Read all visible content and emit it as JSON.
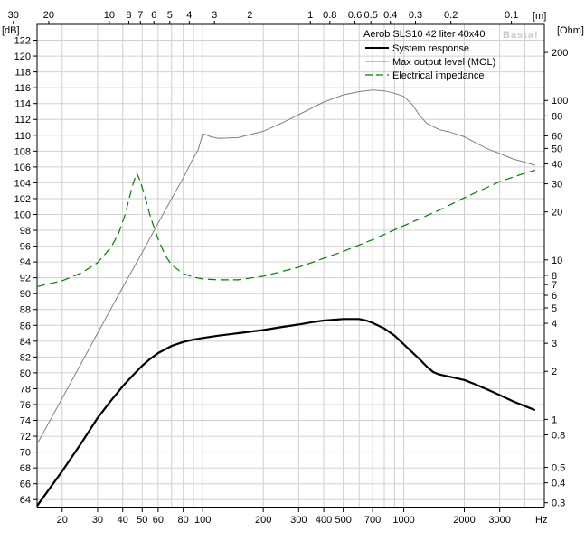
{
  "chart_data": {
    "type": "line",
    "title": "Aerob SLS10 42 liter 40x40",
    "watermark": "Basta!",
    "x_scale": "log",
    "xlim": [
      15,
      5000
    ],
    "x_unit": "Hz",
    "x_ticks": [
      {
        "value": 20,
        "label": "20"
      },
      {
        "value": 30,
        "label": "30"
      },
      {
        "value": 40,
        "label": "40"
      },
      {
        "value": 50,
        "label": "50"
      },
      {
        "value": 60,
        "label": "60"
      },
      {
        "value": 80,
        "label": "80"
      },
      {
        "value": 100,
        "label": "100"
      },
      {
        "value": 200,
        "label": "200"
      },
      {
        "value": 300,
        "label": "300"
      },
      {
        "value": 400,
        "label": "400"
      },
      {
        "value": 500,
        "label": "500"
      },
      {
        "value": 700,
        "label": "700"
      },
      {
        "value": 1000,
        "label": "1000"
      },
      {
        "value": 2000,
        "label": "2000"
      },
      {
        "value": 3000,
        "label": "3000"
      }
    ],
    "top_axis": {
      "unit": "[m]",
      "ticks": [
        {
          "value": 30,
          "label": "30"
        },
        {
          "value": 20,
          "label": "20"
        },
        {
          "value": 10,
          "label": "10"
        },
        {
          "value": 8,
          "label": "8"
        },
        {
          "value": 7,
          "label": "7"
        },
        {
          "value": 6,
          "label": "6"
        },
        {
          "value": 5,
          "label": "5"
        },
        {
          "value": 4,
          "label": "4"
        },
        {
          "value": 3,
          "label": "3"
        },
        {
          "value": 2,
          "label": "2"
        },
        {
          "value": 1,
          "label": "1"
        },
        {
          "value": 0.8,
          "label": "0.8"
        },
        {
          "value": 0.6,
          "label": "0.6"
        },
        {
          "value": 0.5,
          "label": "0.5"
        },
        {
          "value": 0.4,
          "label": "0.4"
        },
        {
          "value": 0.3,
          "label": "0.3"
        },
        {
          "value": 0.2,
          "label": "0.2"
        },
        {
          "value": 0.1,
          "label": "0.1"
        }
      ]
    },
    "y_left": {
      "unit": "[dB]",
      "ylim": [
        63,
        124
      ],
      "ticks": [
        64,
        66,
        68,
        70,
        72,
        74,
        76,
        78,
        80,
        82,
        84,
        86,
        88,
        90,
        92,
        94,
        96,
        98,
        100,
        102,
        104,
        106,
        108,
        110,
        112,
        114,
        116,
        118,
        120,
        122
      ]
    },
    "y_right": {
      "unit": "[Ohm]",
      "scale": "log",
      "ylim": [
        0.28,
        300
      ],
      "ticks": [
        {
          "value": 0.3,
          "label": "0.3"
        },
        {
          "value": 0.4,
          "label": "0.4"
        },
        {
          "value": 0.5,
          "label": "0.5"
        },
        {
          "value": 0.8,
          "label": "0.8"
        },
        {
          "value": 1,
          "label": "1"
        },
        {
          "value": 2,
          "label": "2"
        },
        {
          "value": 3,
          "label": "3"
        },
        {
          "value": 4,
          "label": "4"
        },
        {
          "value": 5,
          "label": "5"
        },
        {
          "value": 6,
          "label": "6"
        },
        {
          "value": 7,
          "label": "7"
        },
        {
          "value": 8,
          "label": "8"
        },
        {
          "value": 10,
          "label": "10"
        },
        {
          "value": 20,
          "label": "20"
        },
        {
          "value": 30,
          "label": "30"
        },
        {
          "value": 40,
          "label": "40"
        },
        {
          "value": 50,
          "label": "50"
        },
        {
          "value": 60,
          "label": "60"
        },
        {
          "value": 80,
          "label": "80"
        },
        {
          "value": 100,
          "label": "100"
        },
        {
          "value": 200,
          "label": "200"
        }
      ]
    },
    "grid": true,
    "legend_position": "top-right",
    "series": [
      {
        "name": "System response",
        "axis": "left",
        "color": "#000000",
        "style": "solid-thick",
        "x": [
          15,
          20,
          25,
          30,
          35,
          40,
          45,
          50,
          55,
          60,
          70,
          80,
          90,
          100,
          120,
          150,
          200,
          250,
          300,
          350,
          400,
          450,
          500,
          550,
          600,
          650,
          700,
          800,
          900,
          1000,
          1100,
          1200,
          1300,
          1400,
          1500,
          1700,
          2000,
          2300,
          2600,
          3000,
          3500,
          4000,
          4500
        ],
        "y": [
          63.2,
          67.6,
          71.2,
          74.3,
          76.5,
          78.3,
          79.7,
          80.9,
          81.8,
          82.5,
          83.4,
          83.9,
          84.2,
          84.4,
          84.7,
          85.0,
          85.4,
          85.8,
          86.1,
          86.4,
          86.6,
          86.7,
          86.8,
          86.8,
          86.8,
          86.6,
          86.3,
          85.6,
          84.7,
          83.6,
          82.6,
          81.7,
          80.8,
          80.1,
          79.8,
          79.5,
          79.1,
          78.5,
          77.9,
          77.2,
          76.4,
          75.8,
          75.3
        ]
      },
      {
        "name": "Max output level (MOL)",
        "axis": "left",
        "color": "#808080",
        "style": "solid-thin",
        "x": [
          15,
          20,
          25,
          30,
          40,
          50,
          60,
          70,
          80,
          88,
          95,
          100,
          110,
          120,
          150,
          200,
          250,
          300,
          400,
          500,
          600,
          700,
          800,
          900,
          1000,
          1100,
          1200,
          1300,
          1500,
          1700,
          2000,
          2300,
          2600,
          3000,
          3500,
          4000,
          4500
        ],
        "y": [
          71.0,
          76.8,
          81.3,
          85.0,
          90.8,
          95.2,
          98.9,
          102.0,
          104.6,
          106.7,
          108.2,
          110.2,
          109.8,
          109.6,
          109.7,
          110.5,
          111.6,
          112.6,
          114.2,
          115.1,
          115.5,
          115.7,
          115.6,
          115.3,
          114.9,
          113.9,
          112.5,
          111.5,
          110.7,
          110.4,
          109.8,
          109.0,
          108.3,
          107.7,
          107.0,
          106.6,
          106.2
        ]
      },
      {
        "name": "Electrical impedance",
        "axis": "right",
        "color": "#008000",
        "style": "dashed",
        "x": [
          15,
          20,
          25,
          30,
          35,
          38,
          41,
          43,
          45,
          47,
          49,
          52,
          55,
          60,
          65,
          70,
          80,
          90,
          100,
          120,
          150,
          200,
          300,
          500,
          700,
          1000,
          1500,
          2000,
          3000,
          4000,
          4500
        ],
        "y": [
          6.8,
          7.4,
          8.3,
          9.6,
          12.0,
          14.5,
          19.0,
          24.0,
          30.0,
          35.0,
          31.0,
          24.0,
          18.5,
          13.5,
          10.7,
          9.3,
          8.2,
          7.8,
          7.6,
          7.5,
          7.5,
          7.9,
          9.0,
          11.3,
          13.4,
          16.4,
          20.5,
          24.5,
          31.0,
          35.0,
          36.5
        ]
      }
    ]
  }
}
